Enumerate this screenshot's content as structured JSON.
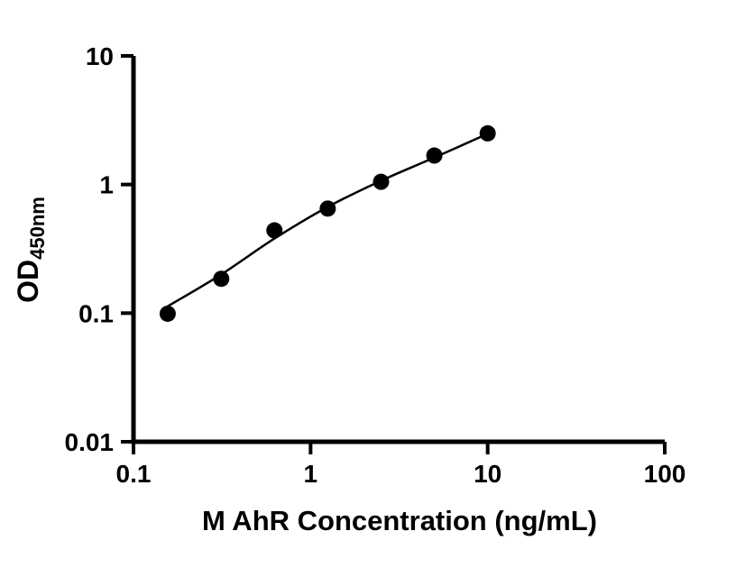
{
  "figure": {
    "background_color": "#ffffff",
    "axis_color": "#000000"
  },
  "chart_data": {
    "type": "scatter",
    "title": "",
    "xlabel": "M AhR Concentration (ng/mL)",
    "ylabel_main": "OD",
    "ylabel_sub": "450nm",
    "x_scale": "log",
    "y_scale": "log",
    "xlim": [
      0.1,
      100
    ],
    "ylim": [
      0.01,
      10
    ],
    "grid": false,
    "legend": null,
    "point_color": "#000000",
    "line_color": "#000000",
    "x_ticks": [
      {
        "value": 0.1,
        "label": "0.1"
      },
      {
        "value": 1,
        "label": "1"
      },
      {
        "value": 10,
        "label": "10"
      },
      {
        "value": 100,
        "label": "100"
      }
    ],
    "y_ticks": [
      {
        "value": 0.01,
        "label": "0.01"
      },
      {
        "value": 0.1,
        "label": "0.1"
      },
      {
        "value": 1,
        "label": "1"
      },
      {
        "value": 10,
        "label": "10"
      }
    ],
    "points": [
      {
        "x": 0.156,
        "y": 0.099
      },
      {
        "x": 0.313,
        "y": 0.185
      },
      {
        "x": 0.625,
        "y": 0.44
      },
      {
        "x": 1.25,
        "y": 0.65
      },
      {
        "x": 2.5,
        "y": 1.05
      },
      {
        "x": 5,
        "y": 1.68
      },
      {
        "x": 10,
        "y": 2.5
      }
    ],
    "fit_curve": [
      {
        "x": 0.156,
        "y": 0.113
      },
      {
        "x": 0.313,
        "y": 0.2
      },
      {
        "x": 0.625,
        "y": 0.38
      },
      {
        "x": 1.25,
        "y": 0.67
      },
      {
        "x": 2.5,
        "y": 1.07
      },
      {
        "x": 5,
        "y": 1.62
      },
      {
        "x": 10,
        "y": 2.48
      }
    ]
  }
}
